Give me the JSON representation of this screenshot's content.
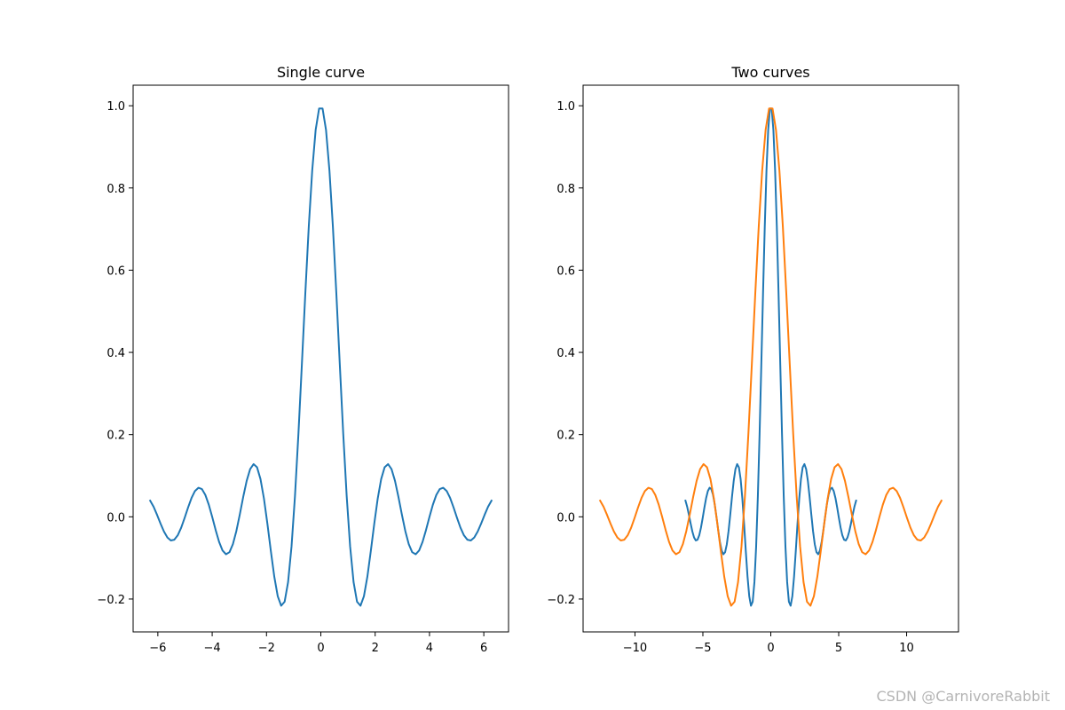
{
  "watermark": "CSDN @CarnivoreRabbit",
  "chart_data": [
    {
      "type": "line",
      "title": "Single curve",
      "xlabel": "",
      "ylabel": "",
      "xlim": [
        -6.91,
        6.91
      ],
      "ylim": [
        -0.28,
        1.05
      ],
      "xticks": [
        -6,
        -4,
        -2,
        0,
        2,
        4,
        6
      ],
      "yticks": [
        -0.2,
        0.0,
        0.2,
        0.4,
        0.6,
        0.8,
        1.0
      ],
      "xtick_labels": [
        "−6",
        "−4",
        "−2",
        "0",
        "2",
        "4",
        "6"
      ],
      "ytick_labels": [
        "−0.2",
        "0.0",
        "0.2",
        "0.4",
        "0.6",
        "0.8",
        "1.0"
      ],
      "grid": false,
      "series": [
        {
          "function": "sinc",
          "frequency": 1.0,
          "x_range": [
            -6.283,
            6.283
          ],
          "samples": 100,
          "color": "#1f77b4"
        }
      ]
    },
    {
      "type": "line",
      "title": "Two curves",
      "xlabel": "",
      "ylabel": "",
      "xlim": [
        -13.82,
        13.82
      ],
      "ylim": [
        -0.28,
        1.05
      ],
      "xticks": [
        -10,
        -5,
        0,
        5,
        10
      ],
      "yticks": [
        -0.2,
        0.0,
        0.2,
        0.4,
        0.6,
        0.8,
        1.0
      ],
      "xtick_labels": [
        "−10",
        "−5",
        "0",
        "5",
        "10"
      ],
      "ytick_labels": [
        "−0.2",
        "0.0",
        "0.2",
        "0.4",
        "0.6",
        "0.8",
        "1.0"
      ],
      "grid": false,
      "series": [
        {
          "function": "sinc",
          "frequency": 1.0,
          "x_range": [
            -6.283,
            6.283
          ],
          "samples": 100,
          "color": "#1f77b4"
        },
        {
          "function": "sinc",
          "frequency": 0.5,
          "x_range": [
            -12.566,
            12.566
          ],
          "samples": 100,
          "color": "#ff7f0e"
        }
      ]
    }
  ]
}
